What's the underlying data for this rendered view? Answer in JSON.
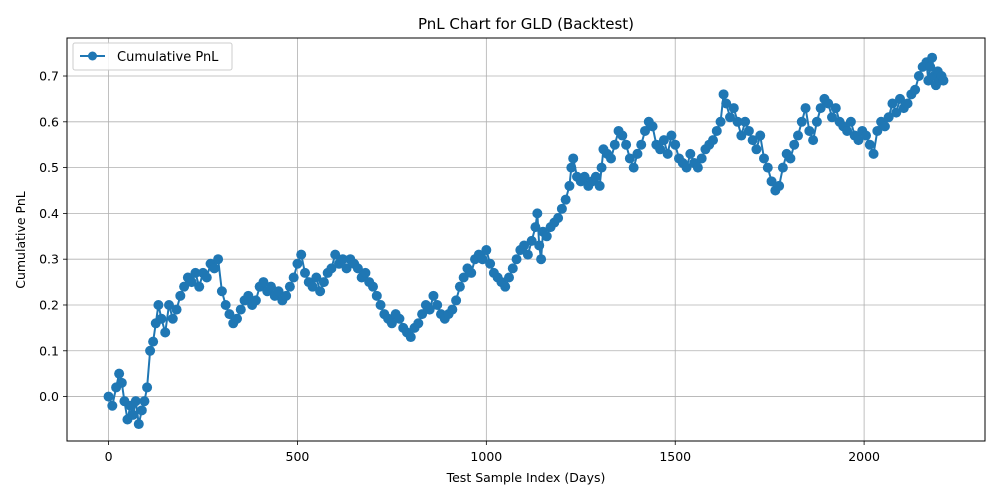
{
  "chart_data": {
    "type": "line",
    "title": "PnL Chart for GLD (Backtest)",
    "xlabel": "Test Sample Index (Days)",
    "ylabel": "Cumulative PnL",
    "xlim": [
      -110,
      2320
    ],
    "ylim": [
      -0.097,
      0.783
    ],
    "x_ticks": [
      0,
      500,
      1000,
      1500,
      2000
    ],
    "y_ticks": [
      0.0,
      0.1,
      0.2,
      0.3,
      0.4,
      0.5,
      0.6,
      0.7
    ],
    "grid": true,
    "legend_position": "top-left",
    "marker": "circle",
    "color": "#1f77b4",
    "series": [
      {
        "name": "Cumulative PnL",
        "x": [
          0,
          10,
          20,
          28,
          35,
          42,
          50,
          58,
          65,
          72,
          80,
          88,
          95,
          102,
          110,
          118,
          125,
          132,
          140,
          150,
          160,
          170,
          180,
          190,
          200,
          210,
          220,
          230,
          240,
          250,
          260,
          270,
          280,
          290,
          300,
          310,
          320,
          330,
          340,
          350,
          360,
          370,
          380,
          390,
          400,
          410,
          420,
          430,
          440,
          450,
          460,
          470,
          480,
          490,
          500,
          510,
          520,
          530,
          540,
          550,
          560,
          570,
          580,
          590,
          600,
          610,
          620,
          630,
          640,
          650,
          660,
          670,
          680,
          690,
          700,
          710,
          720,
          730,
          740,
          750,
          760,
          770,
          780,
          790,
          800,
          810,
          820,
          830,
          840,
          850,
          860,
          870,
          880,
          890,
          900,
          910,
          920,
          930,
          940,
          950,
          960,
          970,
          980,
          990,
          1000,
          1010,
          1020,
          1030,
          1040,
          1050,
          1060,
          1070,
          1080,
          1090,
          1100,
          1110,
          1120,
          1130,
          1135,
          1140,
          1145,
          1150,
          1160,
          1170,
          1180,
          1190,
          1200,
          1210,
          1220,
          1225,
          1230,
          1240,
          1250,
          1260,
          1270,
          1280,
          1290,
          1300,
          1305,
          1310,
          1320,
          1330,
          1340,
          1350,
          1360,
          1370,
          1380,
          1390,
          1400,
          1410,
          1420,
          1430,
          1440,
          1450,
          1460,
          1470,
          1480,
          1490,
          1500,
          1510,
          1520,
          1530,
          1540,
          1550,
          1560,
          1570,
          1580,
          1590,
          1600,
          1610,
          1620,
          1628,
          1635,
          1645,
          1655,
          1665,
          1675,
          1685,
          1695,
          1705,
          1715,
          1725,
          1735,
          1745,
          1755,
          1765,
          1775,
          1785,
          1795,
          1805,
          1815,
          1825,
          1835,
          1845,
          1855,
          1865,
          1875,
          1885,
          1895,
          1905,
          1915,
          1925,
          1935,
          1945,
          1955,
          1965,
          1975,
          1985,
          1995,
          2005,
          2015,
          2025,
          2035,
          2045,
          2055,
          2065,
          2075,
          2085,
          2095,
          2105,
          2115,
          2125,
          2135,
          2145,
          2155,
          2165,
          2170,
          2175,
          2180,
          2185,
          2190,
          2195,
          2200,
          2205,
          2210
        ],
        "y": [
          0.0,
          -0.02,
          0.02,
          0.05,
          0.03,
          -0.01,
          -0.05,
          -0.02,
          -0.04,
          -0.01,
          -0.06,
          -0.03,
          -0.01,
          0.02,
          0.1,
          0.12,
          0.16,
          0.2,
          0.17,
          0.14,
          0.2,
          0.17,
          0.19,
          0.22,
          0.24,
          0.26,
          0.25,
          0.27,
          0.24,
          0.27,
          0.26,
          0.29,
          0.28,
          0.3,
          0.23,
          0.2,
          0.18,
          0.16,
          0.17,
          0.19,
          0.21,
          0.22,
          0.2,
          0.21,
          0.24,
          0.25,
          0.23,
          0.24,
          0.22,
          0.23,
          0.21,
          0.22,
          0.24,
          0.26,
          0.29,
          0.31,
          0.27,
          0.25,
          0.24,
          0.26,
          0.23,
          0.25,
          0.27,
          0.28,
          0.31,
          0.29,
          0.3,
          0.28,
          0.3,
          0.29,
          0.28,
          0.26,
          0.27,
          0.25,
          0.24,
          0.22,
          0.2,
          0.18,
          0.17,
          0.16,
          0.18,
          0.17,
          0.15,
          0.14,
          0.13,
          0.15,
          0.16,
          0.18,
          0.2,
          0.19,
          0.22,
          0.2,
          0.18,
          0.17,
          0.18,
          0.19,
          0.21,
          0.24,
          0.26,
          0.28,
          0.27,
          0.3,
          0.31,
          0.3,
          0.32,
          0.29,
          0.27,
          0.26,
          0.25,
          0.24,
          0.26,
          0.28,
          0.3,
          0.32,
          0.33,
          0.31,
          0.34,
          0.37,
          0.4,
          0.33,
          0.3,
          0.36,
          0.35,
          0.37,
          0.38,
          0.39,
          0.41,
          0.43,
          0.46,
          0.5,
          0.52,
          0.48,
          0.47,
          0.48,
          0.46,
          0.47,
          0.48,
          0.46,
          0.5,
          0.54,
          0.53,
          0.52,
          0.55,
          0.58,
          0.57,
          0.55,
          0.52,
          0.5,
          0.53,
          0.55,
          0.58,
          0.6,
          0.59,
          0.55,
          0.54,
          0.56,
          0.53,
          0.57,
          0.55,
          0.52,
          0.51,
          0.5,
          0.53,
          0.51,
          0.5,
          0.52,
          0.54,
          0.55,
          0.56,
          0.58,
          0.6,
          0.66,
          0.64,
          0.61,
          0.63,
          0.6,
          0.57,
          0.6,
          0.58,
          0.56,
          0.54,
          0.57,
          0.52,
          0.5,
          0.47,
          0.45,
          0.46,
          0.5,
          0.53,
          0.52,
          0.55,
          0.57,
          0.6,
          0.63,
          0.58,
          0.56,
          0.6,
          0.63,
          0.65,
          0.64,
          0.61,
          0.63,
          0.6,
          0.59,
          0.58,
          0.6,
          0.57,
          0.56,
          0.58,
          0.57,
          0.55,
          0.53,
          0.58,
          0.6,
          0.59,
          0.61,
          0.64,
          0.62,
          0.65,
          0.63,
          0.64,
          0.66,
          0.67,
          0.7,
          0.72,
          0.73,
          0.69,
          0.72,
          0.74,
          0.7,
          0.68,
          0.71,
          0.69,
          0.7,
          0.69
        ]
      }
    ]
  }
}
